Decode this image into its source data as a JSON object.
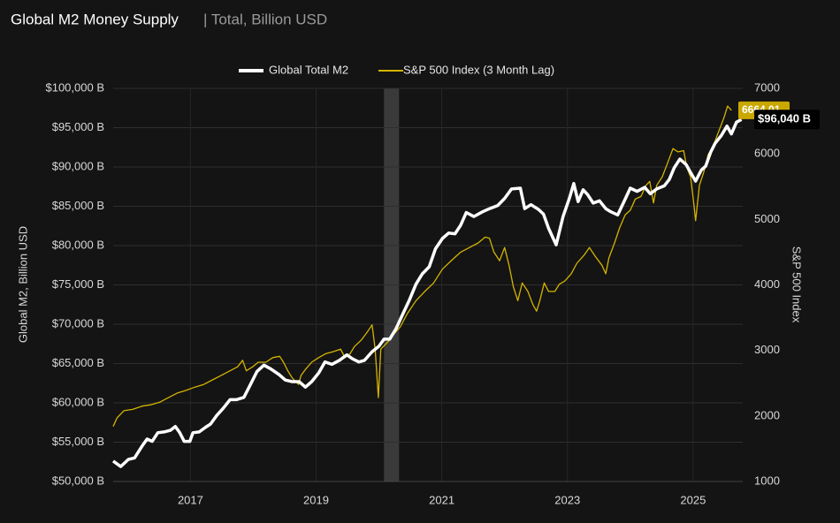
{
  "chart_data": {
    "type": "line",
    "title": "Global M2 Money Supply",
    "subtitle": "| Total, Billion USD",
    "ylabel": "Global M2, Billion USD",
    "y2label": "S&P 500 Index",
    "xlim": [
      2015.77,
      2025.79
    ],
    "xticks": [
      2017,
      2019,
      2021,
      2023,
      2025
    ],
    "ylim": [
      50000,
      100000
    ],
    "yticks": [
      {
        "value": 50000,
        "label": "$50,000 B"
      },
      {
        "value": 55000,
        "label": "$55,000 B"
      },
      {
        "value": 60000,
        "label": "$60,000 B"
      },
      {
        "value": 65000,
        "label": "$65,000 B"
      },
      {
        "value": 70000,
        "label": "$70,000 B"
      },
      {
        "value": 75000,
        "label": "$75,000 B"
      },
      {
        "value": 80000,
        "label": "$80,000 B"
      },
      {
        "value": 85000,
        "label": "$85,000 B"
      },
      {
        "value": 90000,
        "label": "$90,000 B"
      },
      {
        "value": 95000,
        "label": "$95,000 B"
      },
      {
        "value": 100000,
        "label": "$100,000 B"
      }
    ],
    "y2lim": [
      1000,
      7000
    ],
    "y2ticks": [
      1000,
      2000,
      3000,
      4000,
      5000,
      6000,
      7000
    ],
    "grid": true,
    "legend": "top",
    "shaded_region": [
      2020.08,
      2020.32
    ],
    "series": [
      {
        "name": "Global Total M2",
        "color": "#ffffff",
        "axis": "y",
        "last_label": "$96,040 B",
        "x": [
          2015.77,
          2015.89,
          2016.01,
          2016.11,
          2016.23,
          2016.31,
          2016.39,
          2016.48,
          2016.58,
          2016.68,
          2016.76,
          2016.83,
          2016.9,
          2016.99,
          2017.04,
          2017.14,
          2017.24,
          2017.32,
          2017.42,
          2017.52,
          2017.63,
          2017.73,
          2017.85,
          2017.94,
          2018.06,
          2018.17,
          2018.28,
          2018.41,
          2018.51,
          2018.62,
          2018.73,
          2018.83,
          2018.93,
          2019.04,
          2019.14,
          2019.25,
          2019.37,
          2019.49,
          2019.58,
          2019.68,
          2019.77,
          2019.89,
          2020.0,
          2020.08,
          2020.17,
          2020.27,
          2020.38,
          2020.48,
          2020.59,
          2020.69,
          2020.8,
          2020.9,
          2021.01,
          2021.11,
          2021.21,
          2021.3,
          2021.39,
          2021.51,
          2021.65,
          2021.76,
          2021.89,
          2022.0,
          2022.11,
          2022.25,
          2022.32,
          2022.42,
          2022.54,
          2022.62,
          2022.7,
          2022.82,
          2022.93,
          2023.03,
          2023.1,
          2023.17,
          2023.25,
          2023.32,
          2023.41,
          2023.51,
          2023.61,
          2023.69,
          2023.8,
          2023.9,
          2024.0,
          2024.11,
          2024.23,
          2024.32,
          2024.42,
          2024.54,
          2024.62,
          2024.7,
          2024.79,
          2024.89,
          2024.96,
          2025.04,
          2025.13,
          2025.2,
          2025.28,
          2025.35,
          2025.45,
          2025.54,
          2025.61,
          2025.69,
          2025.77
        ],
        "values": [
          52600,
          51900,
          52800,
          53000,
          54500,
          55400,
          55100,
          56200,
          56300,
          56500,
          57000,
          56200,
          55100,
          55100,
          56200,
          56300,
          56900,
          57300,
          58400,
          59300,
          60400,
          60400,
          60700,
          62100,
          64000,
          64800,
          64300,
          63600,
          62900,
          62700,
          62700,
          62000,
          62700,
          63800,
          65200,
          64900,
          65400,
          66100,
          65600,
          65200,
          65400,
          66500,
          67200,
          68100,
          68100,
          69400,
          71300,
          73000,
          75100,
          76400,
          77300,
          79600,
          80900,
          81600,
          81500,
          82600,
          84200,
          83700,
          84300,
          84700,
          85100,
          86000,
          87200,
          87300,
          84700,
          85200,
          84600,
          84000,
          82200,
          80100,
          83700,
          86000,
          87900,
          85600,
          87100,
          86500,
          85400,
          85700,
          84700,
          84300,
          83900,
          85600,
          87300,
          86900,
          87400,
          86600,
          87200,
          87600,
          88400,
          89900,
          91000,
          90300,
          89300,
          88200,
          89600,
          90100,
          91900,
          93000,
          94000,
          95200,
          94200,
          95700,
          96040
        ]
      },
      {
        "name": "S&P 500 Index (3 Month Lag)",
        "color": "#d4b400",
        "axis": "y2",
        "x": [
          2015.77,
          2015.83,
          2015.94,
          2016.08,
          2016.23,
          2016.37,
          2016.51,
          2016.65,
          2016.79,
          2016.93,
          2017.07,
          2017.21,
          2017.35,
          2017.49,
          2017.63,
          2017.75,
          2017.83,
          2017.89,
          2017.99,
          2018.08,
          2018.2,
          2018.31,
          2018.42,
          2018.48,
          2018.55,
          2018.62,
          2018.72,
          2018.76,
          2018.83,
          2018.93,
          2019.04,
          2019.15,
          2019.27,
          2019.39,
          2019.46,
          2019.54,
          2019.61,
          2019.72,
          2019.82,
          2019.89,
          2019.94,
          2019.99,
          2020.03,
          2020.1,
          2020.17,
          2020.24,
          2020.34,
          2020.45,
          2020.59,
          2020.73,
          2020.87,
          2021.01,
          2021.15,
          2021.3,
          2021.44,
          2021.58,
          2021.69,
          2021.76,
          2021.83,
          2021.92,
          2022.0,
          2022.07,
          2022.14,
          2022.21,
          2022.28,
          2022.37,
          2022.45,
          2022.51,
          2022.56,
          2022.63,
          2022.7,
          2022.8,
          2022.87,
          2022.96,
          2023.06,
          2023.15,
          2023.27,
          2023.35,
          2023.44,
          2023.55,
          2023.61,
          2023.66,
          2023.75,
          2023.83,
          2023.92,
          2024.0,
          2024.08,
          2024.17,
          2024.25,
          2024.31,
          2024.37,
          2024.42,
          2024.51,
          2024.59,
          2024.68,
          2024.76,
          2024.85,
          2024.9,
          2024.96,
          2025.01,
          2025.04,
          2025.1,
          2025.17,
          2025.24,
          2025.32,
          2025.41,
          2025.49,
          2025.55,
          2025.61
        ],
        "values": [
          1840,
          1970,
          2080,
          2100,
          2150,
          2170,
          2210,
          2280,
          2350,
          2390,
          2440,
          2480,
          2550,
          2620,
          2690,
          2750,
          2850,
          2690,
          2750,
          2820,
          2820,
          2890,
          2910,
          2820,
          2690,
          2580,
          2480,
          2620,
          2710,
          2820,
          2890,
          2950,
          2980,
          3020,
          2890,
          2950,
          3060,
          3160,
          3290,
          3390,
          3020,
          2280,
          3020,
          3090,
          3160,
          3250,
          3360,
          3560,
          3760,
          3900,
          4030,
          4240,
          4370,
          4500,
          4570,
          4640,
          4730,
          4710,
          4500,
          4370,
          4570,
          4300,
          3970,
          3760,
          4030,
          3900,
          3700,
          3600,
          3760,
          4030,
          3900,
          3900,
          4010,
          4060,
          4170,
          4330,
          4460,
          4570,
          4440,
          4300,
          4170,
          4410,
          4640,
          4870,
          5070,
          5140,
          5310,
          5350,
          5520,
          5580,
          5250,
          5520,
          5650,
          5850,
          6080,
          6030,
          6050,
          5790,
          5650,
          5250,
          4980,
          5520,
          5720,
          5990,
          6120,
          6350,
          6550,
          6730,
          6664.01
        ]
      }
    ]
  }
}
